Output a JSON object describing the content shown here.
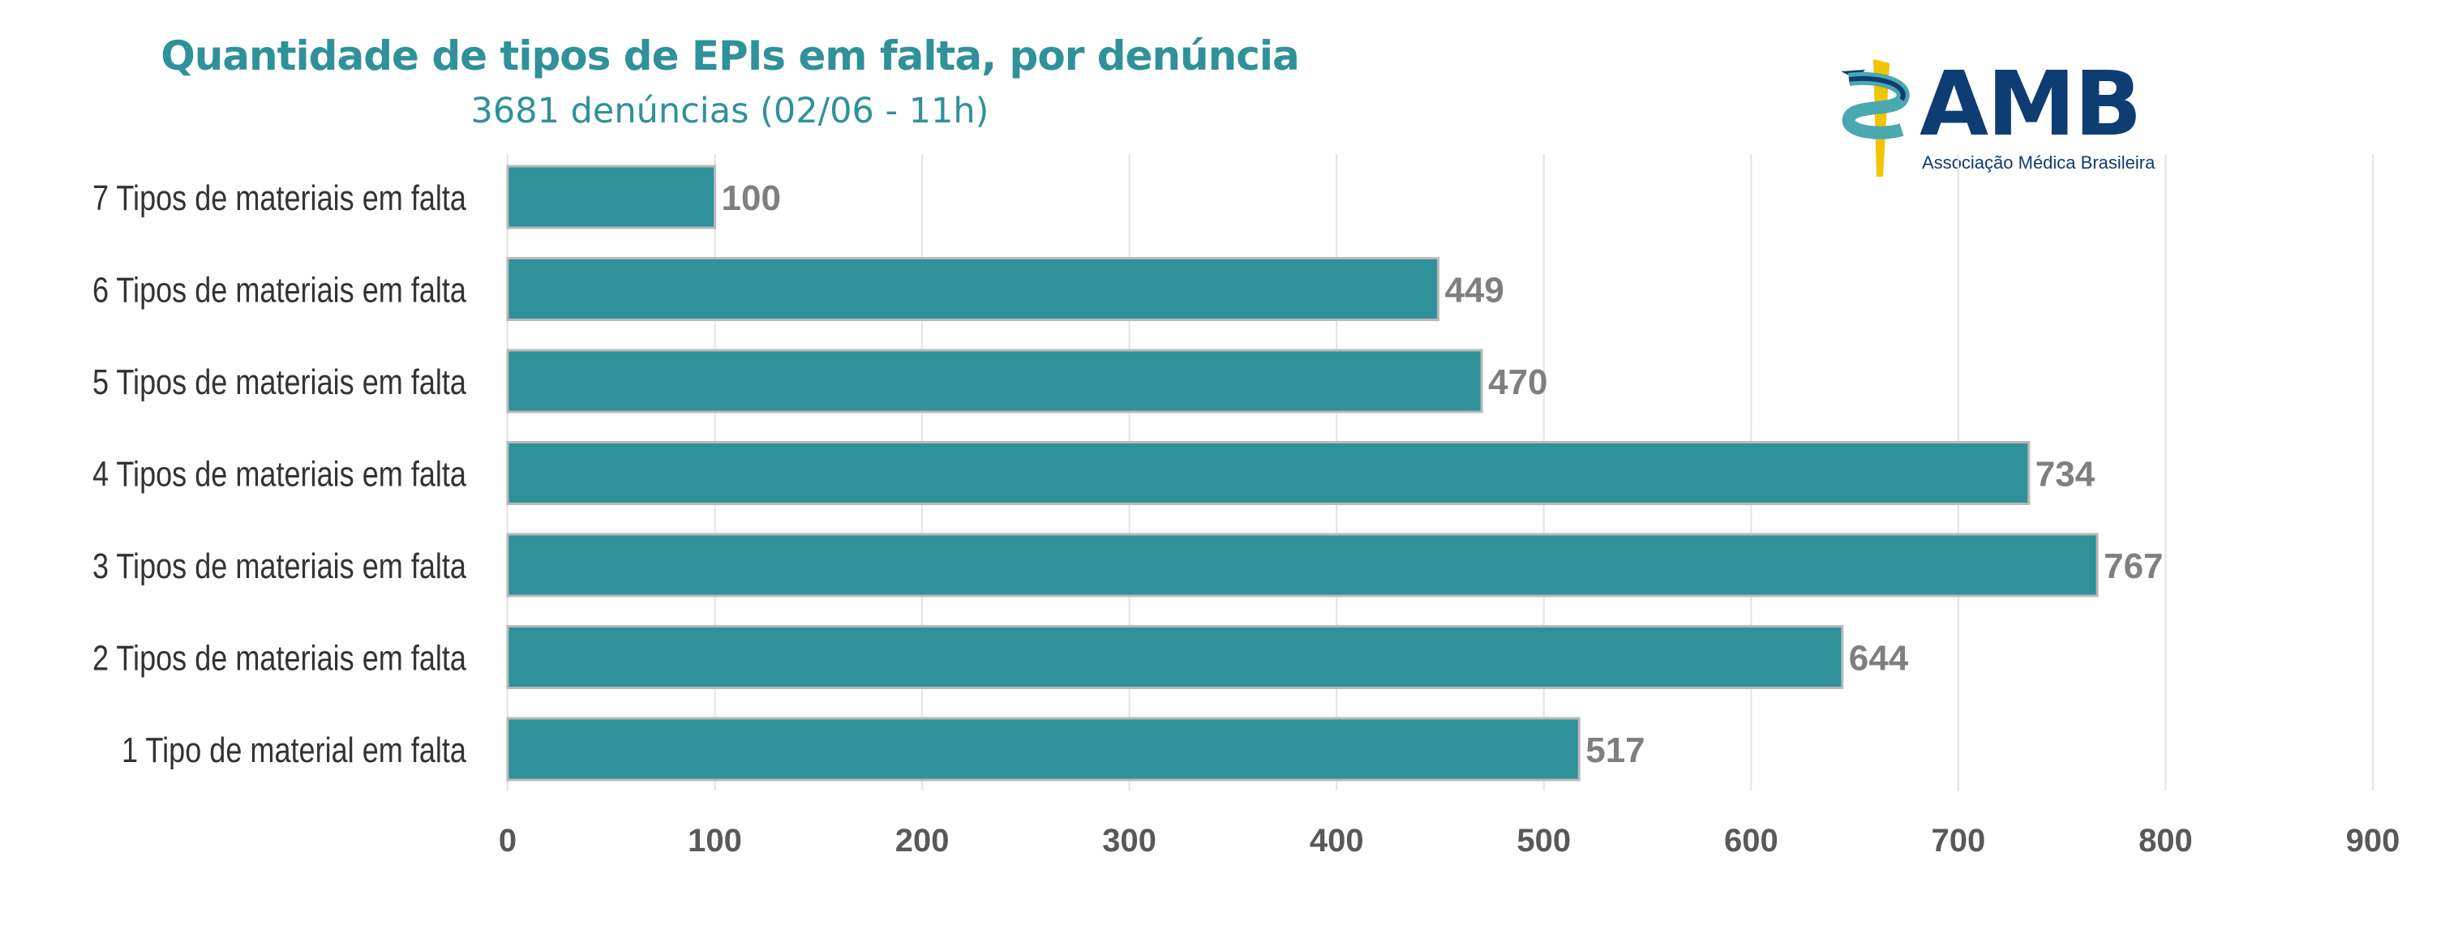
{
  "chart_data": {
    "type": "bar",
    "orientation": "horizontal",
    "title": "Quantidade de tipos de EPIs em falta, por denúncia",
    "subtitle": "3681 denúncias (02/06 - 11h)",
    "categories": [
      "7 Tipos de materiais em falta",
      "6 Tipos de materiais em falta",
      "5 Tipos de materiais em falta",
      "4 Tipos de materiais em falta",
      "3 Tipos de materiais em falta",
      "2 Tipos de materiais em falta",
      "1 Tipo de material em falta"
    ],
    "values": [
      100,
      449,
      470,
      734,
      767,
      644,
      517
    ],
    "xlim": [
      0,
      900
    ],
    "xticks": [
      0,
      100,
      200,
      300,
      400,
      500,
      600,
      700,
      800,
      900
    ],
    "grid": "vertical",
    "bar_color": "#2f9199",
    "label_color": "#7f7f7f",
    "legend": "none"
  },
  "logo": {
    "wordmark": "AMB",
    "tagline": "Associação Médica Brasileira",
    "primary_color": "#0e3d73",
    "accent_color": "#f2c500"
  }
}
